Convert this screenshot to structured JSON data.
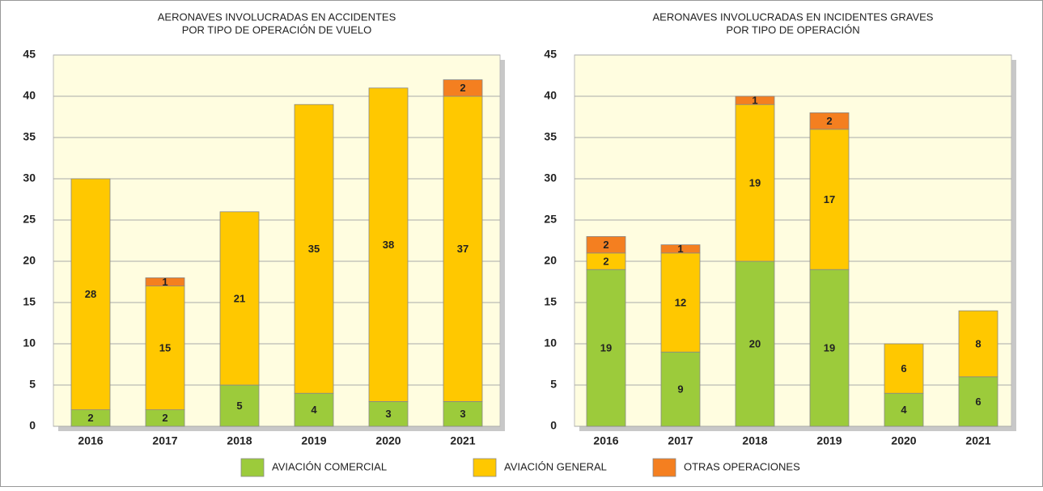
{
  "chart_data": [
    {
      "type": "stacked_bar",
      "title": [
        "AERONAVES INVOLUCRADAS EN ACCIDENTES",
        "POR TIPO DE OPERACIÓN DE VUELO"
      ],
      "categories": [
        "2016",
        "2017",
        "2018",
        "2019",
        "2020",
        "2021"
      ],
      "series": [
        {
          "name": "AVIACIÓN COMERCIAL",
          "color": "#9ccb3b",
          "values": [
            2,
            2,
            5,
            4,
            3,
            3
          ]
        },
        {
          "name": "AVIACIÓN GENERAL",
          "color": "#ffc800",
          "values": [
            28,
            15,
            21,
            35,
            38,
            37
          ]
        },
        {
          "name": "OTRAS OPERACIONES",
          "color": "#f47f20",
          "values": [
            0,
            1,
            0,
            0,
            0,
            2
          ]
        }
      ],
      "ylim": [
        0,
        45
      ],
      "yticks": [
        0,
        5,
        10,
        15,
        20,
        25,
        30,
        35,
        40,
        45
      ],
      "grid": true
    },
    {
      "type": "stacked_bar",
      "title": [
        "AERONAVES INVOLUCRADAS EN INCIDENTES GRAVES",
        "POR TIPO DE OPERACIÓN"
      ],
      "categories": [
        "2016",
        "2017",
        "2018",
        "2019",
        "2020",
        "2021"
      ],
      "series": [
        {
          "name": "AVIACIÓN COMERCIAL",
          "color": "#9ccb3b",
          "values": [
            19,
            9,
            20,
            19,
            4,
            6
          ]
        },
        {
          "name": "AVIACIÓN GENERAL",
          "color": "#ffc800",
          "values": [
            2,
            12,
            19,
            17,
            6,
            8
          ]
        },
        {
          "name": "OTRAS OPERACIONES",
          "color": "#f47f20",
          "values": [
            2,
            1,
            1,
            2,
            0,
            0
          ]
        }
      ],
      "ylim": [
        0,
        45
      ],
      "yticks": [
        0,
        5,
        10,
        15,
        20,
        25,
        30,
        35,
        40,
        45
      ],
      "grid": true
    }
  ]
}
